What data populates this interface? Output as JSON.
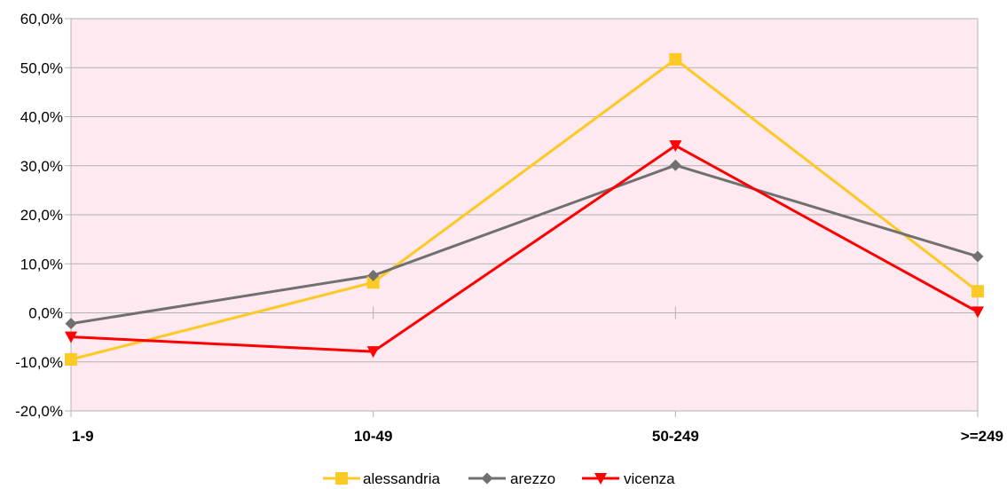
{
  "chart_data": {
    "type": "line",
    "categories": [
      "1-9",
      "10-49",
      "50-249",
      ">=249"
    ],
    "series": [
      {
        "name": "alessandria",
        "values": [
          -9.5,
          6.2,
          51.7,
          4.4
        ],
        "color": "#fcc925",
        "marker": "square"
      },
      {
        "name": "arezzo",
        "values": [
          -2.2,
          7.6,
          30.1,
          11.5
        ],
        "color": "#707070",
        "marker": "diamond"
      },
      {
        "name": "vicenza",
        "values": [
          -4.9,
          -7.9,
          34.1,
          0.2
        ],
        "color": "#ff0000",
        "marker": "triangle-down"
      }
    ],
    "ylim": [
      -20,
      60
    ],
    "yticks": [
      60,
      50,
      40,
      30,
      20,
      10,
      0,
      -10,
      -20
    ],
    "ytick_labels": [
      "60,0%",
      "50,0%",
      "40,0%",
      "30,0%",
      "20,0%",
      "10,0%",
      "0,0%",
      "-10,0%",
      "-20,0%"
    ],
    "grid": true,
    "legend_position": "bottom",
    "plot_background": "#fde9ef",
    "title": "",
    "xlabel": "",
    "ylabel": ""
  }
}
